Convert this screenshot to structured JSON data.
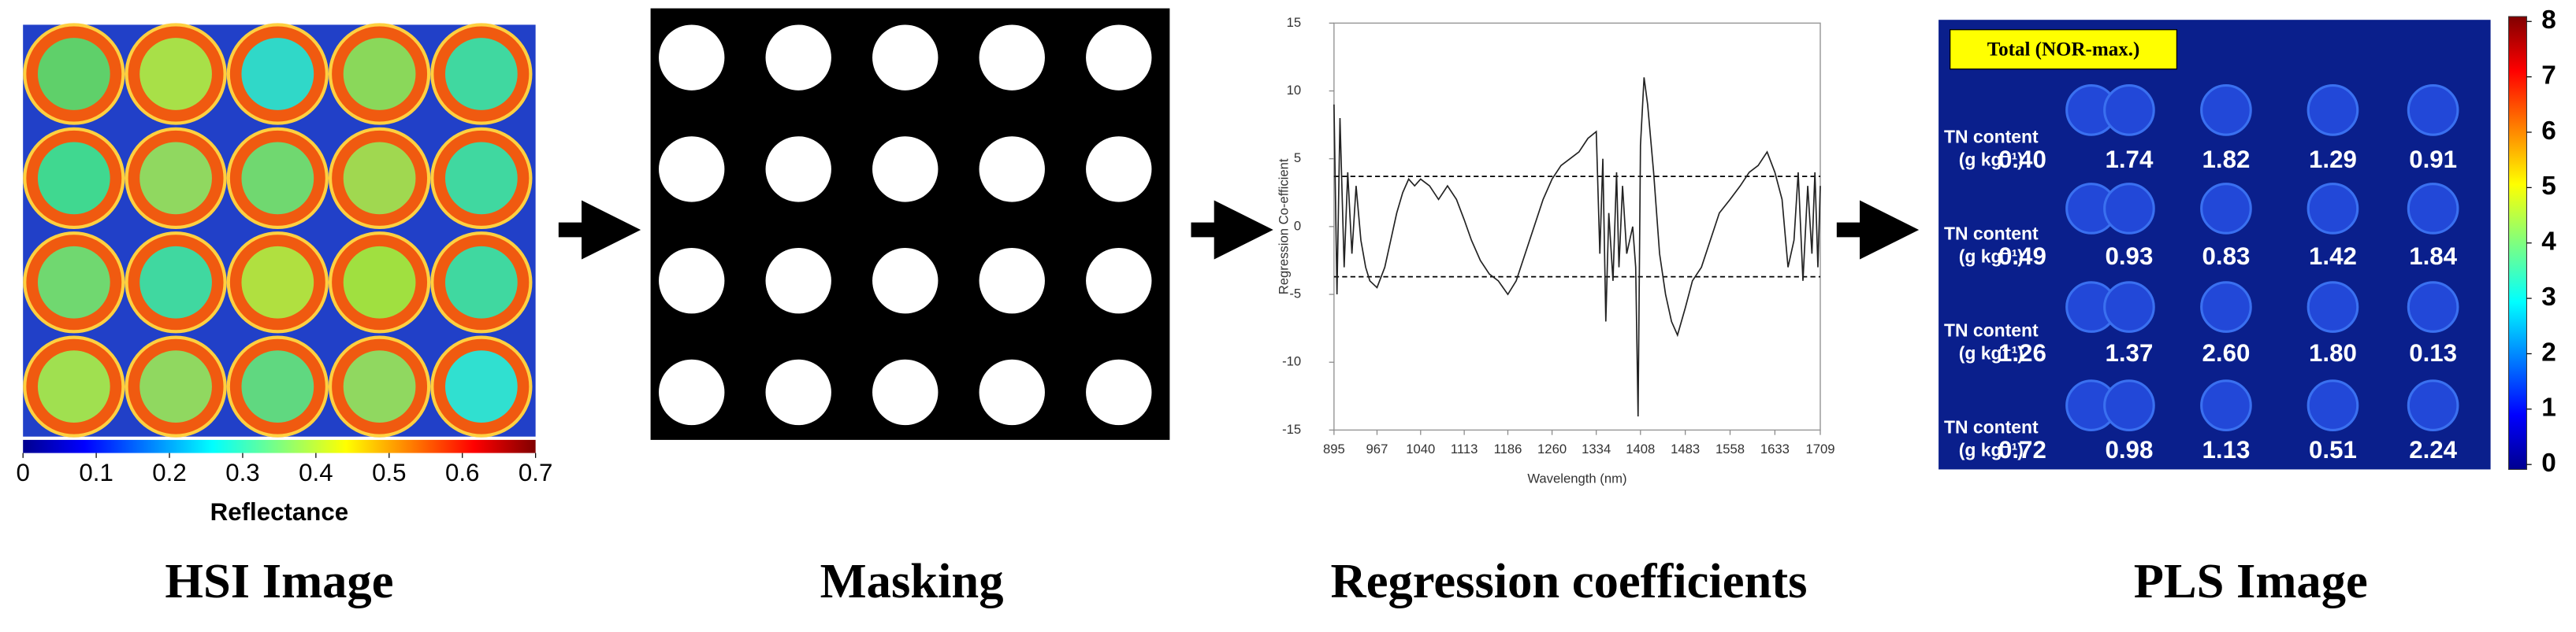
{
  "hsi": {
    "caption": "HSI Image",
    "colorbar_label": "Reflectance",
    "colorbar_ticks": [
      0,
      0.1,
      0.2,
      0.3,
      0.4,
      0.5,
      0.6,
      0.7
    ]
  },
  "masking": {
    "caption": "Masking"
  },
  "chart_data": {
    "type": "line",
    "caption": "Regression coefficients",
    "x_label": "Wavelength (nm)",
    "y_label": "Regression Co-efficient",
    "x": [
      895,
      900,
      905,
      912,
      918,
      925,
      932,
      940,
      948,
      955,
      967,
      980,
      990,
      1000,
      1010,
      1020,
      1030,
      1040,
      1055,
      1070,
      1085,
      1100,
      1113,
      1125,
      1140,
      1155,
      1170,
      1186,
      1200,
      1215,
      1230,
      1245,
      1260,
      1275,
      1290,
      1305,
      1320,
      1334,
      1340,
      1345,
      1350,
      1355,
      1362,
      1368,
      1372,
      1378,
      1385,
      1395,
      1400,
      1404,
      1408,
      1414,
      1420,
      1430,
      1440,
      1450,
      1460,
      1470,
      1483,
      1495,
      1510,
      1525,
      1540,
      1558,
      1575,
      1590,
      1605,
      1620,
      1633,
      1645,
      1655,
      1665,
      1672,
      1680,
      1688,
      1695,
      1700,
      1705,
      1709
    ],
    "values": [
      9,
      -5,
      8,
      -3,
      4,
      -2,
      3,
      -1,
      -3,
      -4,
      -4.5,
      -3,
      -1,
      1,
      2.5,
      3.5,
      3,
      3.5,
      3,
      2,
      3,
      2,
      0.5,
      -1,
      -2.5,
      -3.5,
      -4,
      -5,
      -4,
      -2,
      0,
      2,
      3.5,
      4.5,
      5,
      5.5,
      6.5,
      7,
      -2,
      5,
      -7,
      1,
      -4,
      4,
      -3,
      3,
      -2,
      0,
      -3,
      -14,
      6,
      11,
      9,
      4,
      -2,
      -5,
      -7,
      -8,
      -6,
      -4,
      -3,
      -1,
      1,
      2,
      3,
      4,
      4.5,
      5.5,
      4,
      2,
      -3,
      -1,
      4,
      -4,
      3,
      -2,
      4,
      -3,
      3
    ],
    "color": "#222222",
    "xlim": [
      895,
      1709
    ],
    "xticks": [
      895,
      967,
      1040,
      1113,
      1186,
      1260,
      1334,
      1408,
      1483,
      1558,
      1633,
      1709
    ],
    "ylim": [
      -15,
      15
    ],
    "yticks": [
      -15,
      -10,
      -5,
      0,
      5,
      10,
      15
    ],
    "thresholds": [
      3.7,
      -3.7
    ]
  },
  "pls": {
    "caption": "PLS Image",
    "badge": "Total (NOR-max.)",
    "row_label": "TN content",
    "unit_label": "(g kg⁻¹)",
    "rows": [
      [
        "0.40",
        "1.74",
        "1.82",
        "1.29",
        "0.91"
      ],
      [
        "0.49",
        "0.93",
        "0.83",
        "1.42",
        "1.84"
      ],
      [
        "1.26",
        "1.37",
        "2.60",
        "1.80",
        "0.13"
      ],
      [
        "0.72",
        "0.98",
        "1.13",
        "0.51",
        "2.24"
      ]
    ],
    "colorbar_ticks": [
      0,
      1,
      2,
      3,
      4,
      5,
      6,
      7,
      8
    ]
  }
}
